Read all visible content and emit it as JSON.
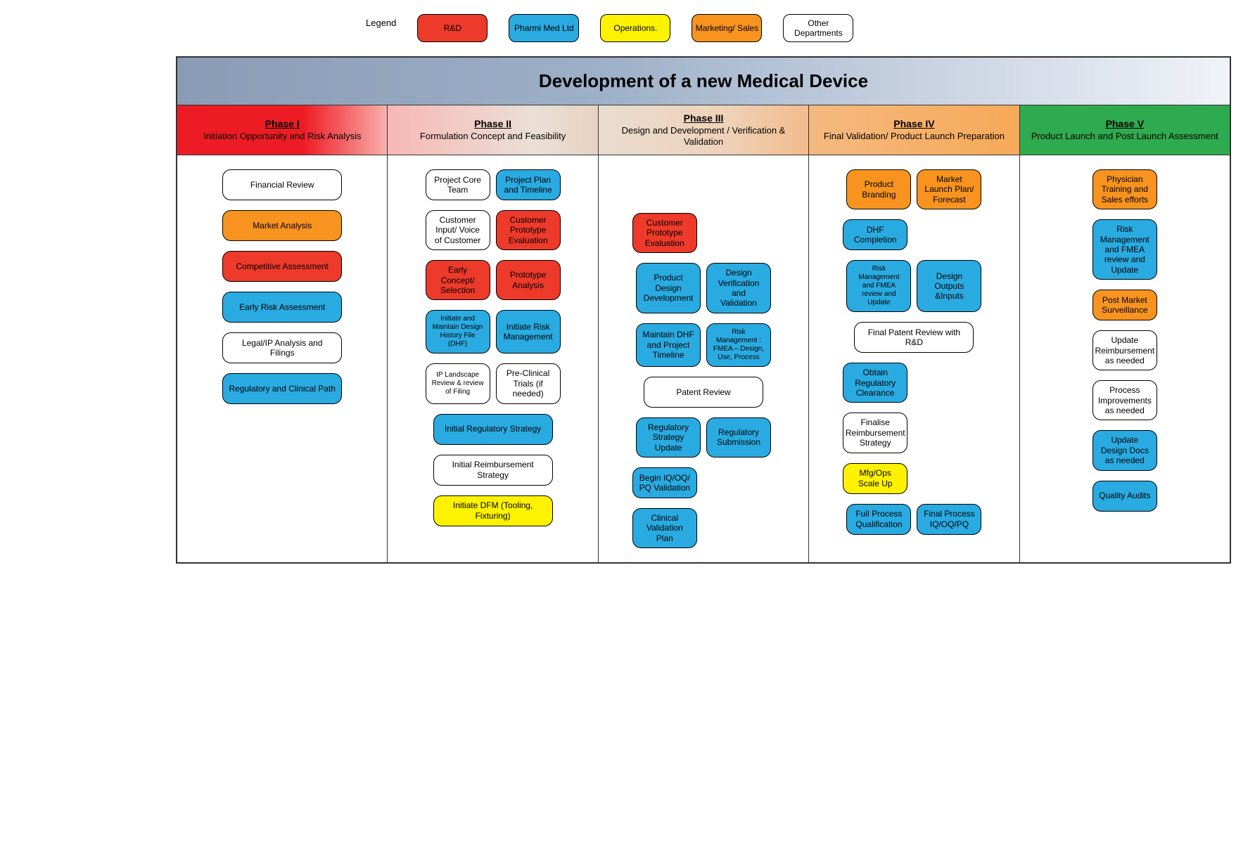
{
  "colors": {
    "rd": "#ed3a2a",
    "rd_light": "#f1503e",
    "pharmi": "#29abe2",
    "operations": "#fff200",
    "marketing": "#f7931e",
    "other": "#ffffff",
    "phase1": "#ed1c24",
    "phase1_grad_end": "#f9c5c0",
    "phase2": "#f7b48f",
    "phase3": "#f7b48f",
    "phase4": "#f7a957",
    "phase5": "#2eaa4f"
  },
  "legend": {
    "label": "Legend",
    "items": [
      {
        "label": "R&D",
        "color_key": "rd"
      },
      {
        "label": "Pharmi Med Ltd",
        "color_key": "pharmi"
      },
      {
        "label": "Operations.",
        "color_key": "operations"
      },
      {
        "label": "Marketing/ Sales",
        "color_key": "marketing"
      },
      {
        "label": "Other Departments",
        "color_key": "other"
      }
    ]
  },
  "title": "Development of a new Medical Device",
  "phases": [
    {
      "title": "Phase I",
      "subtitle": "Initiation Opportunity and Risk Analysis",
      "header_bg": "linear-gradient(to right, #ed1c24 0%, #ed1c24 60%, #f8b0ac 100%)",
      "header_color": "#000",
      "activities": [
        [
          {
            "label": "Financial Review",
            "color_key": "other",
            "w": "wide"
          }
        ],
        [
          {
            "label": "Market Analysis",
            "color_key": "marketing",
            "w": "wide"
          }
        ],
        [
          {
            "label": "Competitive Assessment",
            "color_key": "rd",
            "w": "wide"
          }
        ],
        [
          {
            "label": "Early Risk Assessment",
            "color_key": "pharmi",
            "w": "wide"
          }
        ],
        [
          {
            "label": "Legal/IP Analysis and Filings",
            "color_key": "other",
            "w": "wide"
          }
        ],
        [
          {
            "label": "Regulatory and Clinical Path",
            "color_key": "pharmi",
            "w": "wide"
          }
        ]
      ]
    },
    {
      "title": "Phase II",
      "subtitle": "Formulation Concept and Feasibility",
      "header_bg": "linear-gradient(to right, #f7b8b4 0%, #eadfd6 70%, #e8d2c0 100%)",
      "header_color": "#000",
      "activities": [
        [
          {
            "label": "Project Core Team",
            "color_key": "other",
            "w": "half"
          },
          {
            "label": "Project Plan and Timeline",
            "color_key": "pharmi",
            "w": "half"
          }
        ],
        [
          {
            "label": "Customer Input/ Voice of Customer",
            "color_key": "other",
            "w": "half"
          },
          {
            "label": "Customer Prototype Evaluation",
            "color_key": "rd",
            "w": "half"
          }
        ],
        [
          {
            "label": "Early Concept/ Selection",
            "color_key": "rd",
            "w": "half"
          },
          {
            "label": "Prototype Analysis",
            "color_key": "rd",
            "w": "half"
          }
        ],
        [
          {
            "label": "Initiate and Maintain Design History File (DHF)",
            "color_key": "pharmi",
            "w": "half",
            "small": true
          },
          {
            "label": "Initiate Risk Management",
            "color_key": "pharmi",
            "w": "half"
          }
        ],
        [
          {
            "label": "IP Landscape Review & review of Filing",
            "color_key": "other",
            "w": "half",
            "small": true
          },
          {
            "label": "Pre-Clinical Trials (if needed)",
            "color_key": "other",
            "w": "half"
          }
        ],
        [
          {
            "label": "Initial Regulatory Strategy",
            "color_key": "pharmi",
            "w": "wide"
          }
        ],
        [
          {
            "label": "Initial Reimbursement Strategy",
            "color_key": "other",
            "w": "wide"
          }
        ],
        [
          {
            "label": "Initiate DFM (Tooling, Fixturing)",
            "color_key": "operations",
            "w": "wide"
          }
        ]
      ]
    },
    {
      "title": "Phase III",
      "subtitle": "Design and Development / Verification & Validation",
      "header_bg": "linear-gradient(to right, #e9dccf 0%, #eed2b9 60%, #f3bb8c 100%)",
      "header_color": "#000",
      "activities": [
        [
          {
            "spacer": true
          }
        ],
        [
          {
            "label": "Customer Prototype Evaluation",
            "color_key": "rd",
            "w": "half",
            "align": "left"
          }
        ],
        [
          {
            "label": "Product Design Development",
            "color_key": "pharmi",
            "w": "half"
          },
          {
            "label": "Design Verification and Validation",
            "color_key": "pharmi",
            "w": "half"
          }
        ],
        [
          {
            "label": "Maintain DHF and Project Timeline",
            "color_key": "pharmi",
            "w": "half"
          },
          {
            "label": "Risk Management : FMEA – Design, Use, Process",
            "color_key": "pharmi",
            "w": "half",
            "small": true
          }
        ],
        [
          {
            "label": "Patent Review",
            "color_key": "other",
            "w": "wide"
          }
        ],
        [
          {
            "label": "Regulatory Strategy Update",
            "color_key": "pharmi",
            "w": "half"
          },
          {
            "label": "Regulatory Submission",
            "color_key": "pharmi",
            "w": "half"
          }
        ],
        [
          {
            "label": "Begin IQ/OQ/ PQ Validation",
            "color_key": "pharmi",
            "w": "half",
            "align": "left"
          }
        ],
        [
          {
            "label": "Clinical Validation Plan",
            "color_key": "pharmi",
            "w": "half",
            "align": "left"
          }
        ]
      ]
    },
    {
      "title": "Phase IV",
      "subtitle": "Final Validation/ Product Launch Preparation",
      "header_bg": "linear-gradient(to right, #f4b980 0%, #f7a957 100%)",
      "header_color": "#000",
      "activities": [
        [
          {
            "label": "Product Branding",
            "color_key": "marketing",
            "w": "half"
          },
          {
            "label": "Market Launch Plan/ Forecast",
            "color_key": "marketing",
            "w": "half"
          }
        ],
        [
          {
            "label": "DHF Completion",
            "color_key": "pharmi",
            "w": "half",
            "align": "left"
          }
        ],
        [
          {
            "label": "Risk Management and FMEA review and Update",
            "color_key": "pharmi",
            "w": "half",
            "small": true
          },
          {
            "label": "Design Outputs &Inputs",
            "color_key": "pharmi",
            "w": "half"
          }
        ],
        [
          {
            "label": "Final Patent Review with R&D",
            "color_key": "other",
            "w": "wide"
          }
        ],
        [
          {
            "label": "Obtain Regulatory Clearance",
            "color_key": "pharmi",
            "w": "half",
            "align": "left"
          }
        ],
        [
          {
            "label": "Finalise Reimbursement Strategy",
            "color_key": "other",
            "w": "half",
            "align": "left"
          }
        ],
        [
          {
            "label": "Mfg/Ops Scale Up",
            "color_key": "operations",
            "w": "half",
            "align": "left"
          }
        ],
        [
          {
            "label": "Full Process Qualification",
            "color_key": "pharmi",
            "w": "half"
          },
          {
            "label": "Final Process IQ/OQ/PQ",
            "color_key": "pharmi",
            "w": "half"
          }
        ]
      ]
    },
    {
      "title": "Phase V",
      "subtitle": "Product Launch and Post Launch Assessment",
      "header_bg": "#2eaa4f",
      "header_color": "#000",
      "activities": [
        [
          {
            "label": "Physician Training and Sales efforts",
            "color_key": "marketing",
            "w": "half"
          }
        ],
        [
          {
            "label": "Risk Management and FMEA review and Update",
            "color_key": "pharmi",
            "w": "half"
          }
        ],
        [
          {
            "label": "Post Market Surveillance",
            "color_key": "marketing",
            "w": "half"
          }
        ],
        [
          {
            "label": "Update Reimbursement as needed",
            "color_key": "other",
            "w": "half"
          }
        ],
        [
          {
            "label": "Process Improvements as needed",
            "color_key": "other",
            "w": "half"
          }
        ],
        [
          {
            "label": "Update Design Docs as needed",
            "color_key": "pharmi",
            "w": "half"
          }
        ],
        [
          {
            "label": "Quality Audits",
            "color_key": "pharmi",
            "w": "half"
          }
        ]
      ]
    }
  ]
}
